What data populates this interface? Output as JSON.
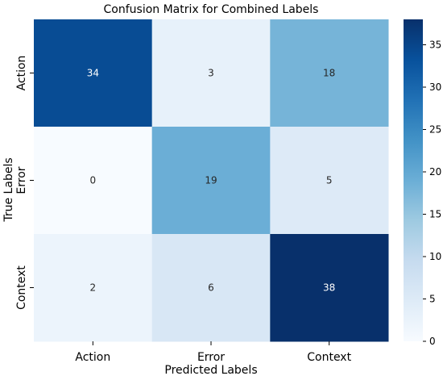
{
  "chart_data": {
    "type": "heatmap",
    "title": "Confusion Matrix for Combined Labels",
    "xlabel": "Predicted Labels",
    "ylabel": "True Labels",
    "x_categories": [
      "Action",
      "Error",
      "Context"
    ],
    "y_categories": [
      "Action",
      "Error",
      "Context"
    ],
    "values": [
      [
        34,
        3,
        18
      ],
      [
        0,
        19,
        5
      ],
      [
        2,
        6,
        38
      ]
    ],
    "colorscale": "Blues",
    "color_range": [
      0,
      38
    ],
    "colorbar_ticks": [
      0,
      5,
      10,
      15,
      20,
      25,
      30,
      35
    ],
    "colors": {
      "low": "#f7fbff",
      "high": "#08306b"
    },
    "annotations_visible": true,
    "grid": false
  }
}
